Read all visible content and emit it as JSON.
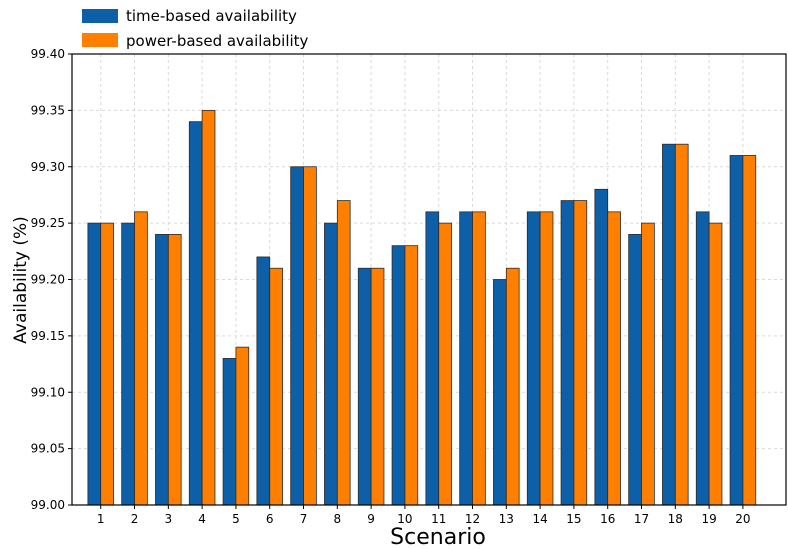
{
  "chart_data": {
    "type": "bar",
    "categories": [
      "1",
      "2",
      "3",
      "4",
      "5",
      "6",
      "7",
      "8",
      "9",
      "10",
      "11",
      "12",
      "13",
      "14",
      "15",
      "16",
      "17",
      "18",
      "19",
      "20"
    ],
    "series": [
      {
        "name": "time-based availability",
        "color": "#0d5fa8",
        "values": [
          99.25,
          99.25,
          99.24,
          99.34,
          99.13,
          99.22,
          99.3,
          99.25,
          99.21,
          99.23,
          99.26,
          99.26,
          99.2,
          99.26,
          99.27,
          99.28,
          99.24,
          99.32,
          99.26,
          99.31
        ]
      },
      {
        "name": "power-based availability",
        "color": "#ff8000",
        "values": [
          99.25,
          99.26,
          99.24,
          99.35,
          99.14,
          99.21,
          99.3,
          99.27,
          99.21,
          99.23,
          99.25,
          99.26,
          99.21,
          99.26,
          99.27,
          99.26,
          99.25,
          99.32,
          99.25,
          99.31
        ]
      }
    ],
    "xlabel": "Scenario",
    "ylabel": "Availability (%)",
    "ylim": [
      99.0,
      99.4
    ],
    "yticks": [
      "99.00",
      "99.05",
      "99.10",
      "99.15",
      "99.20",
      "99.25",
      "99.30",
      "99.35",
      "99.40"
    ],
    "grid": true,
    "legend": "top-left"
  }
}
